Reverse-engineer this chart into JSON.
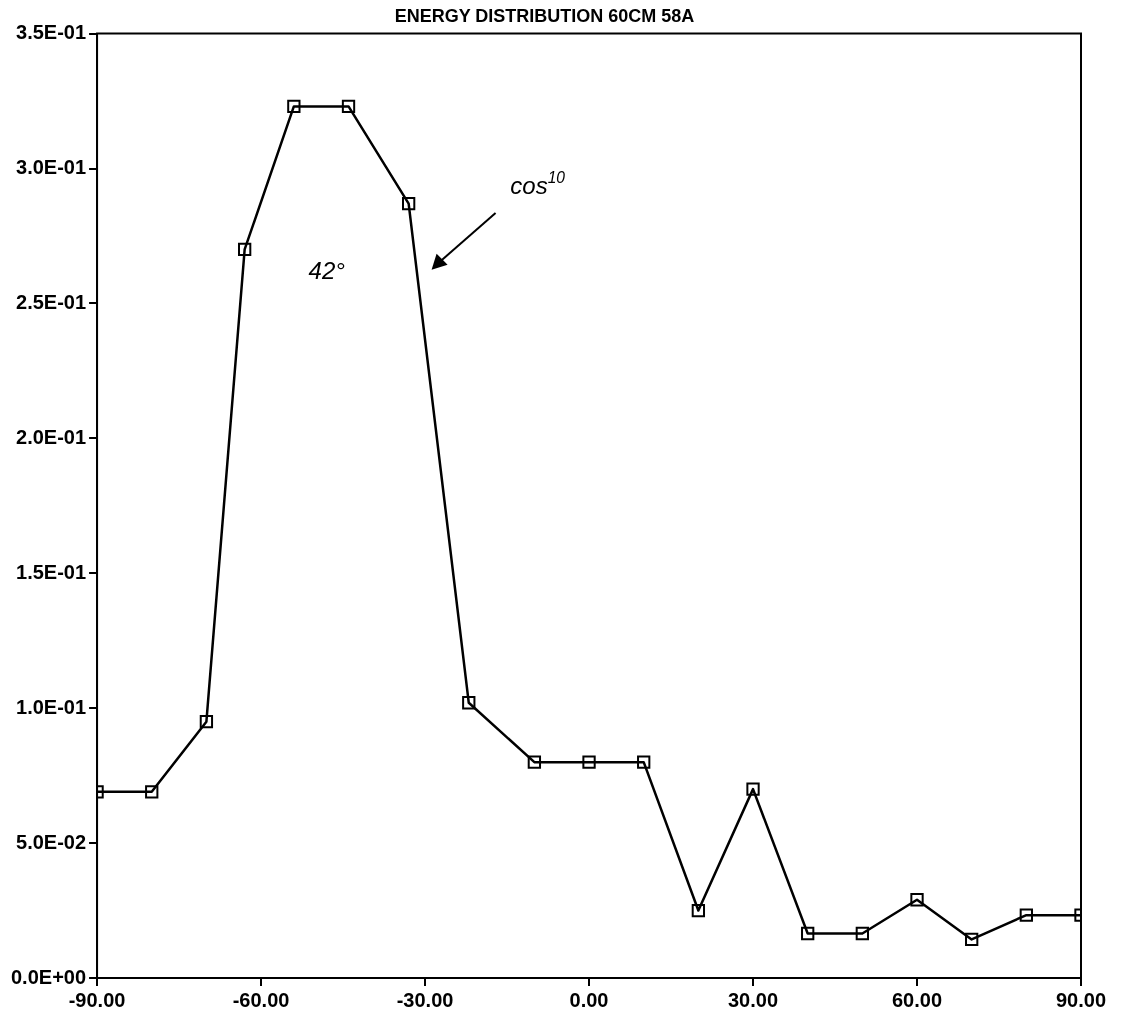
{
  "chart_data": {
    "type": "line",
    "title": "ENERGY DISTRIBUTION 60CM 58A",
    "x": [
      -90,
      -80,
      -70,
      -63,
      -54,
      -44,
      -33,
      -22,
      -10,
      0,
      10,
      20,
      30,
      40,
      50,
      60,
      70,
      80,
      90
    ],
    "series": [
      {
        "color": "#000000",
        "values": [
          0.069,
          0.069,
          0.095,
          0.27,
          0.323,
          0.323,
          0.287,
          0.102,
          0.08,
          0.08,
          0.08,
          0.025,
          0.07,
          0.0165,
          0.0165,
          0.029,
          0.0143,
          0.0233,
          0.0233
        ]
      }
    ],
    "xlim": [
      -90,
      90
    ],
    "xticks": [
      {
        "value": -90,
        "label": "-90.00"
      },
      {
        "value": -60,
        "label": "-60.00"
      },
      {
        "value": -30,
        "label": "-30.00"
      },
      {
        "value": 0,
        "label": "0.00"
      },
      {
        "value": 30,
        "label": "30.00"
      },
      {
        "value": 60,
        "label": "60.00"
      },
      {
        "value": 90,
        "label": "90.00"
      }
    ],
    "ylim": [
      0,
      0.35
    ],
    "yticks": [
      {
        "value": 0,
        "label": "0.0E+00"
      },
      {
        "value": 0.05,
        "label": "5.0E-02"
      },
      {
        "value": 0.1,
        "label": "1.0E-01"
      },
      {
        "value": 0.15,
        "label": "1.5E-01"
      },
      {
        "value": 0.2,
        "label": "2.0E-01"
      },
      {
        "value": 0.25,
        "label": "2.5E-01"
      },
      {
        "value": 0.3,
        "label": "3.0E-01"
      },
      {
        "value": 0.35,
        "label": "3.5E-01"
      }
    ],
    "annotations": [
      "42°",
      "cos$^{10}$"
    ],
    "marker": "square",
    "line_style": "solid",
    "grid": false,
    "legend": false
  }
}
